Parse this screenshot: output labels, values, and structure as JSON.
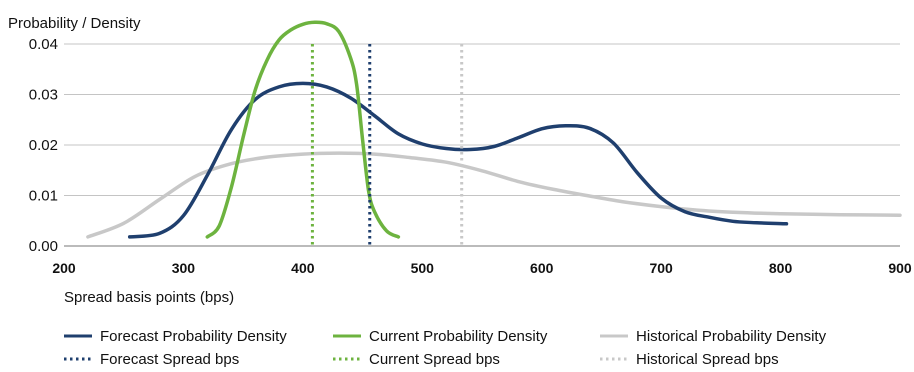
{
  "chart_data": {
    "type": "line",
    "ylabel": "Probability / Density",
    "xlabel": "Spread basis points (bps)",
    "xlim": [
      200,
      900
    ],
    "ylim": [
      0,
      0.04
    ],
    "x_ticks": [
      "200",
      "300",
      "400",
      "500",
      "600",
      "700",
      "800",
      "900"
    ],
    "y_ticks": [
      "0.04",
      "0.03",
      "0.02",
      "0.01",
      "0.00"
    ],
    "grid": true,
    "legend_position": "bottom",
    "series": [
      {
        "name": "Forecast Probability Density",
        "style": "solid",
        "color": "#1f3f6e",
        "points": [
          [
            255,
            0.0018
          ],
          [
            280,
            0.0025
          ],
          [
            300,
            0.006
          ],
          [
            320,
            0.014
          ],
          [
            340,
            0.023
          ],
          [
            360,
            0.029
          ],
          [
            380,
            0.0315
          ],
          [
            400,
            0.0322
          ],
          [
            420,
            0.0315
          ],
          [
            440,
            0.0293
          ],
          [
            460,
            0.0258
          ],
          [
            480,
            0.0222
          ],
          [
            500,
            0.0202
          ],
          [
            520,
            0.0193
          ],
          [
            540,
            0.0191
          ],
          [
            560,
            0.0197
          ],
          [
            580,
            0.0214
          ],
          [
            600,
            0.0232
          ],
          [
            620,
            0.0238
          ],
          [
            640,
            0.0233
          ],
          [
            660,
            0.0204
          ],
          [
            680,
            0.0145
          ],
          [
            700,
            0.0095
          ],
          [
            720,
            0.0068
          ],
          [
            740,
            0.0057
          ],
          [
            760,
            0.0049
          ],
          [
            780,
            0.0046
          ],
          [
            805,
            0.0044
          ]
        ]
      },
      {
        "name": "Current Probability Density",
        "style": "solid",
        "color": "#6db33f",
        "points": [
          [
            320,
            0.0018
          ],
          [
            330,
            0.004
          ],
          [
            340,
            0.0115
          ],
          [
            350,
            0.0215
          ],
          [
            360,
            0.0308
          ],
          [
            370,
            0.0368
          ],
          [
            380,
            0.0408
          ],
          [
            390,
            0.0428
          ],
          [
            400,
            0.0439
          ],
          [
            410,
            0.0443
          ],
          [
            420,
            0.044
          ],
          [
            430,
            0.0425
          ],
          [
            440,
            0.0372
          ],
          [
            445,
            0.032
          ],
          [
            450,
            0.021
          ],
          [
            455,
            0.011
          ],
          [
            460,
            0.0068
          ],
          [
            470,
            0.003
          ],
          [
            480,
            0.0018
          ]
        ]
      },
      {
        "name": "Historical Probability Density",
        "style": "solid",
        "color": "#c8c8c8",
        "points": [
          [
            220,
            0.0018
          ],
          [
            250,
            0.0045
          ],
          [
            280,
            0.0092
          ],
          [
            310,
            0.0138
          ],
          [
            340,
            0.0163
          ],
          [
            370,
            0.0176
          ],
          [
            400,
            0.0182
          ],
          [
            430,
            0.0184
          ],
          [
            460,
            0.0182
          ],
          [
            490,
            0.0175
          ],
          [
            520,
            0.0166
          ],
          [
            550,
            0.0149
          ],
          [
            580,
            0.0128
          ],
          [
            610,
            0.0112
          ],
          [
            640,
            0.0099
          ],
          [
            670,
            0.0087
          ],
          [
            700,
            0.0078
          ],
          [
            730,
            0.0071
          ],
          [
            760,
            0.0067
          ],
          [
            800,
            0.0064
          ],
          [
            850,
            0.0062
          ],
          [
            900,
            0.0061
          ]
        ]
      },
      {
        "name": "Forecast Spread bps",
        "style": "dotted",
        "color": "#1f3f6e",
        "x": 456
      },
      {
        "name": "Current Spread bps",
        "style": "dotted",
        "color": "#6db33f",
        "x": 408
      },
      {
        "name": "Historical Spread bps",
        "style": "dotted",
        "color": "#c8c8c8",
        "x": 533
      }
    ]
  }
}
